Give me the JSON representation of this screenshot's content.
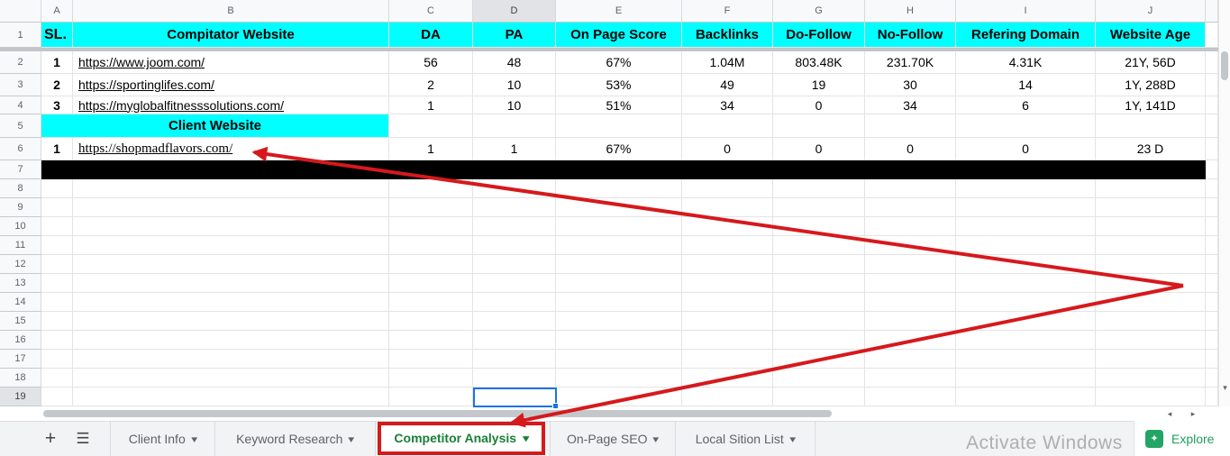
{
  "grid": {
    "column_headers": [
      "A",
      "B",
      "C",
      "D",
      "E",
      "F",
      "G",
      "H",
      "I",
      "J"
    ],
    "row_headers": [
      "1",
      "2",
      "3",
      "4",
      "5",
      "6",
      "7",
      "8",
      "9",
      "10",
      "11",
      "12",
      "13",
      "14",
      "15",
      "16",
      "17",
      "18",
      "19"
    ],
    "selected_cell": {
      "column": "D",
      "row": "19"
    },
    "table": {
      "headers": [
        "SL.",
        "Compitator Website",
        "DA",
        "PA",
        "On Page Score",
        "Backlinks",
        "Do-Follow",
        "No-Follow",
        "Refering Domain",
        "Website Age"
      ],
      "competitors": [
        {
          "sl": "1",
          "website": "https://www.joom.com/",
          "da": "56",
          "pa": "48",
          "score": "67%",
          "backlinks": "1.04M",
          "dofollow": "803.48K",
          "nofollow": "231.70K",
          "refdomain": "4.31K",
          "age": "21Y, 56D"
        },
        {
          "sl": "2",
          "website": "https://sportinglifes.com/",
          "da": "2",
          "pa": "10",
          "score": "53%",
          "backlinks": "49",
          "dofollow": "19",
          "nofollow": "30",
          "refdomain": "14",
          "age": "1Y, 288D"
        },
        {
          "sl": "3",
          "website": "https://myglobalfitnesssolutions.com/",
          "da": "1",
          "pa": "10",
          "score": "51%",
          "backlinks": "34",
          "dofollow": "0",
          "nofollow": "34",
          "refdomain": "6",
          "age": "1Y, 141D"
        }
      ],
      "client_section_label": "Client Website",
      "client": {
        "sl": "1",
        "website": "https://shopmadflavors.com/",
        "da": "1",
        "pa": "1",
        "score": "67%",
        "backlinks": "0",
        "dofollow": "0",
        "nofollow": "0",
        "refdomain": "0",
        "age": "23 D"
      }
    }
  },
  "tabbar": {
    "add_sheet_icon": "+",
    "all_sheets_icon": "☰",
    "tabs": [
      {
        "label": "Client Info",
        "active": false
      },
      {
        "label": "Keyword Research",
        "active": false
      },
      {
        "label": "Competitor Analysis",
        "active": true
      },
      {
        "label": "On-Page SEO",
        "active": false
      },
      {
        "label": "Local Sition List",
        "active": false
      }
    ],
    "dropdown_glyph": "▾",
    "explore_label": "Explore",
    "explore_icon": "✦"
  },
  "scroll": {
    "up_glyph": "◂",
    "down_glyph": "▸",
    "v_down_glyph": "▾"
  },
  "watermark": "Activate Windows",
  "colors": {
    "header_fill": "#00ffff",
    "annotation_red": "#d6191c",
    "active_tab_green": "#188038",
    "explore_green": "#23a566",
    "selection_blue": "#1a73e8",
    "black_row": "#000000"
  }
}
